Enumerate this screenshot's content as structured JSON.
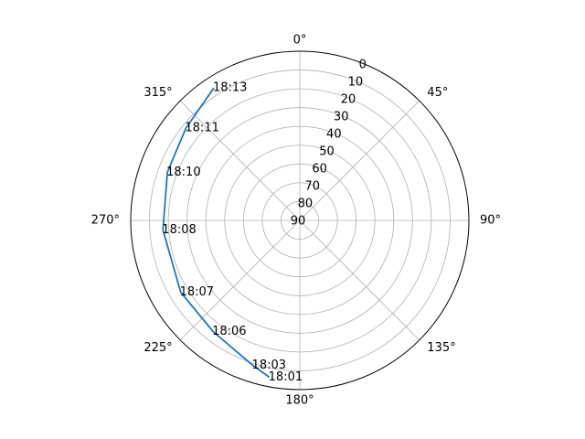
{
  "chart_data": {
    "type": "line",
    "projection": "polar",
    "theta_zero_location": "N",
    "theta_direction": "clockwise",
    "theta_tick_labels": [
      "0°",
      "45°",
      "90°",
      "135°",
      "180°",
      "225°",
      "270°",
      "315°"
    ],
    "r_axis": {
      "inverted": true,
      "range": [
        90,
        0
      ],
      "tick_labels": [
        "0",
        "10",
        "20",
        "30",
        "40",
        "50",
        "60",
        "70",
        "80",
        "90"
      ]
    },
    "grid": true,
    "series": [
      {
        "color": "#1f77b4",
        "points": [
          {
            "az": 191,
            "el": 5,
            "label": "18:01"
          },
          {
            "az": 198,
            "el": 9,
            "label": "18:03"
          },
          {
            "az": 218,
            "el": 15,
            "label": "18:06"
          },
          {
            "az": 239,
            "el": 16,
            "label": "18:07"
          },
          {
            "az": 266,
            "el": 17,
            "label": "18:08"
          },
          {
            "az": 290,
            "el": 15,
            "label": "18:10"
          },
          {
            "az": 309,
            "el": 12,
            "label": "18:11"
          },
          {
            "az": 327,
            "el": 6,
            "label": "18:13"
          }
        ]
      }
    ]
  }
}
